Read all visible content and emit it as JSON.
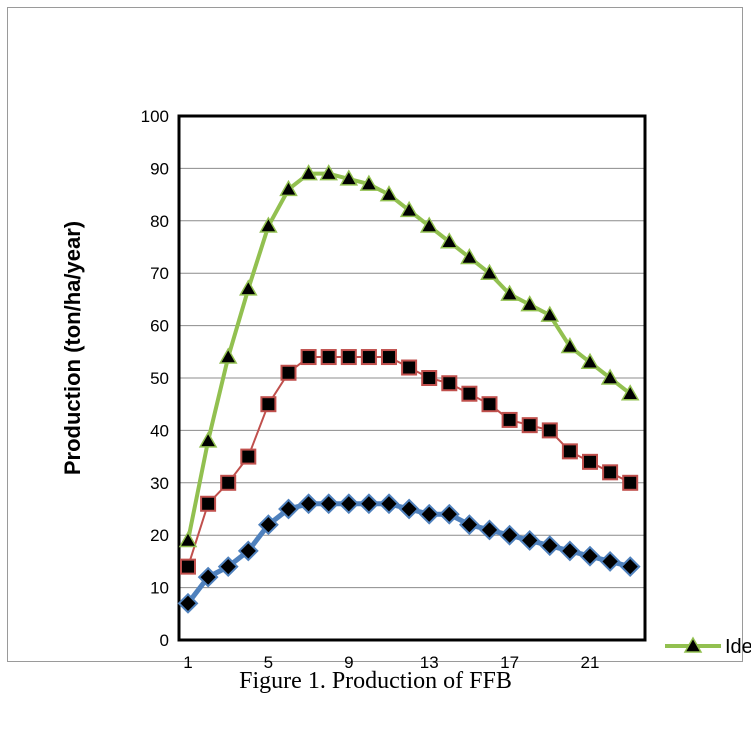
{
  "caption": "Figure 1. Production of FFB",
  "chart_data": {
    "type": "line",
    "title": "",
    "ylabel": "Production (ton/ha/year)",
    "xlabel": "",
    "ylim": [
      0,
      100
    ],
    "y_ticks": [
      0,
      10,
      20,
      30,
      40,
      50,
      60,
      70,
      80,
      90,
      100
    ],
    "x": [
      1,
      2,
      3,
      4,
      5,
      6,
      7,
      8,
      9,
      10,
      11,
      12,
      13,
      14,
      15,
      16,
      17,
      18,
      19,
      20,
      21,
      22,
      23
    ],
    "x_tick_labels": [
      "1",
      "5",
      "9",
      "13",
      "17",
      "21"
    ],
    "grid": "horizontal",
    "legend_placement": "right (clipped)",
    "series": [
      {
        "name": "Ide",
        "marker": "triangle",
        "line_color": "#92c050",
        "values": [
          19,
          38,
          54,
          67,
          79,
          86,
          89,
          89,
          88,
          87,
          85,
          82,
          79,
          76,
          73,
          70,
          66,
          64,
          62,
          56,
          53,
          50,
          47
        ]
      },
      {
        "name": "",
        "marker": "square",
        "line_color": "#c0504d",
        "values": [
          14,
          26,
          30,
          35,
          45,
          51,
          54,
          54,
          54,
          54,
          54,
          52,
          50,
          49,
          47,
          45,
          42,
          41,
          40,
          36,
          34,
          32,
          30
        ]
      },
      {
        "name": "",
        "marker": "diamond",
        "line_color": "#4f81bd",
        "values": [
          7,
          12,
          14,
          17,
          22,
          25,
          26,
          26,
          26,
          26,
          26,
          25,
          24,
          24,
          22,
          21,
          20,
          19,
          18,
          17,
          16,
          15,
          14
        ]
      }
    ]
  }
}
